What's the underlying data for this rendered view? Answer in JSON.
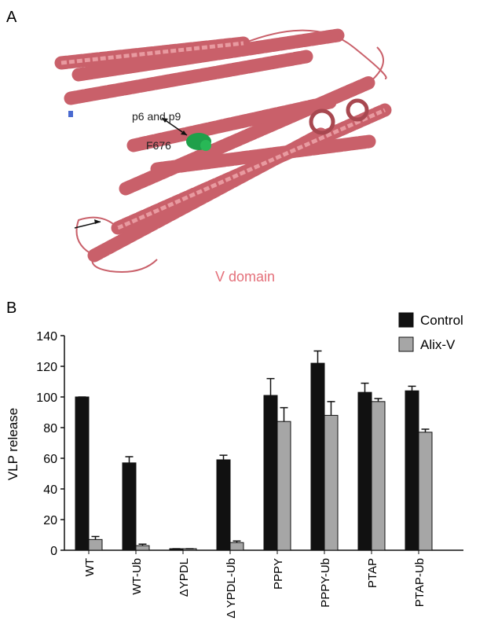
{
  "panel_a": {
    "label": "A",
    "annotation_1": "p6 and p9",
    "annotation_2": "F676",
    "caption": "V domain"
  },
  "chart_data": {
    "type": "bar",
    "panel_label": "B",
    "ylabel": "VLP release",
    "categories": [
      "WT",
      "WT-Ub",
      "ΔYPDL",
      "Δ YPDL-Ub",
      "PPPY",
      "PPPY-Ub",
      "PTAP",
      "PTAP-Ub"
    ],
    "series": [
      {
        "name": "Control",
        "color": "#111111",
        "values": [
          100,
          57,
          1,
          59,
          101,
          122,
          103,
          104
        ],
        "errors": [
          0,
          4,
          0,
          3,
          11,
          8,
          6,
          3
        ]
      },
      {
        "name": "Alix-V",
        "color": "#a6a6a6",
        "values": [
          7,
          3,
          1,
          5,
          84,
          88,
          97,
          77
        ],
        "errors": [
          2,
          1,
          0,
          1,
          9,
          9,
          2,
          2
        ]
      }
    ],
    "ylim": [
      0,
      140
    ],
    "yticks": [
      0,
      20,
      40,
      60,
      80,
      100,
      120,
      140
    ],
    "legend": "upper right"
  }
}
